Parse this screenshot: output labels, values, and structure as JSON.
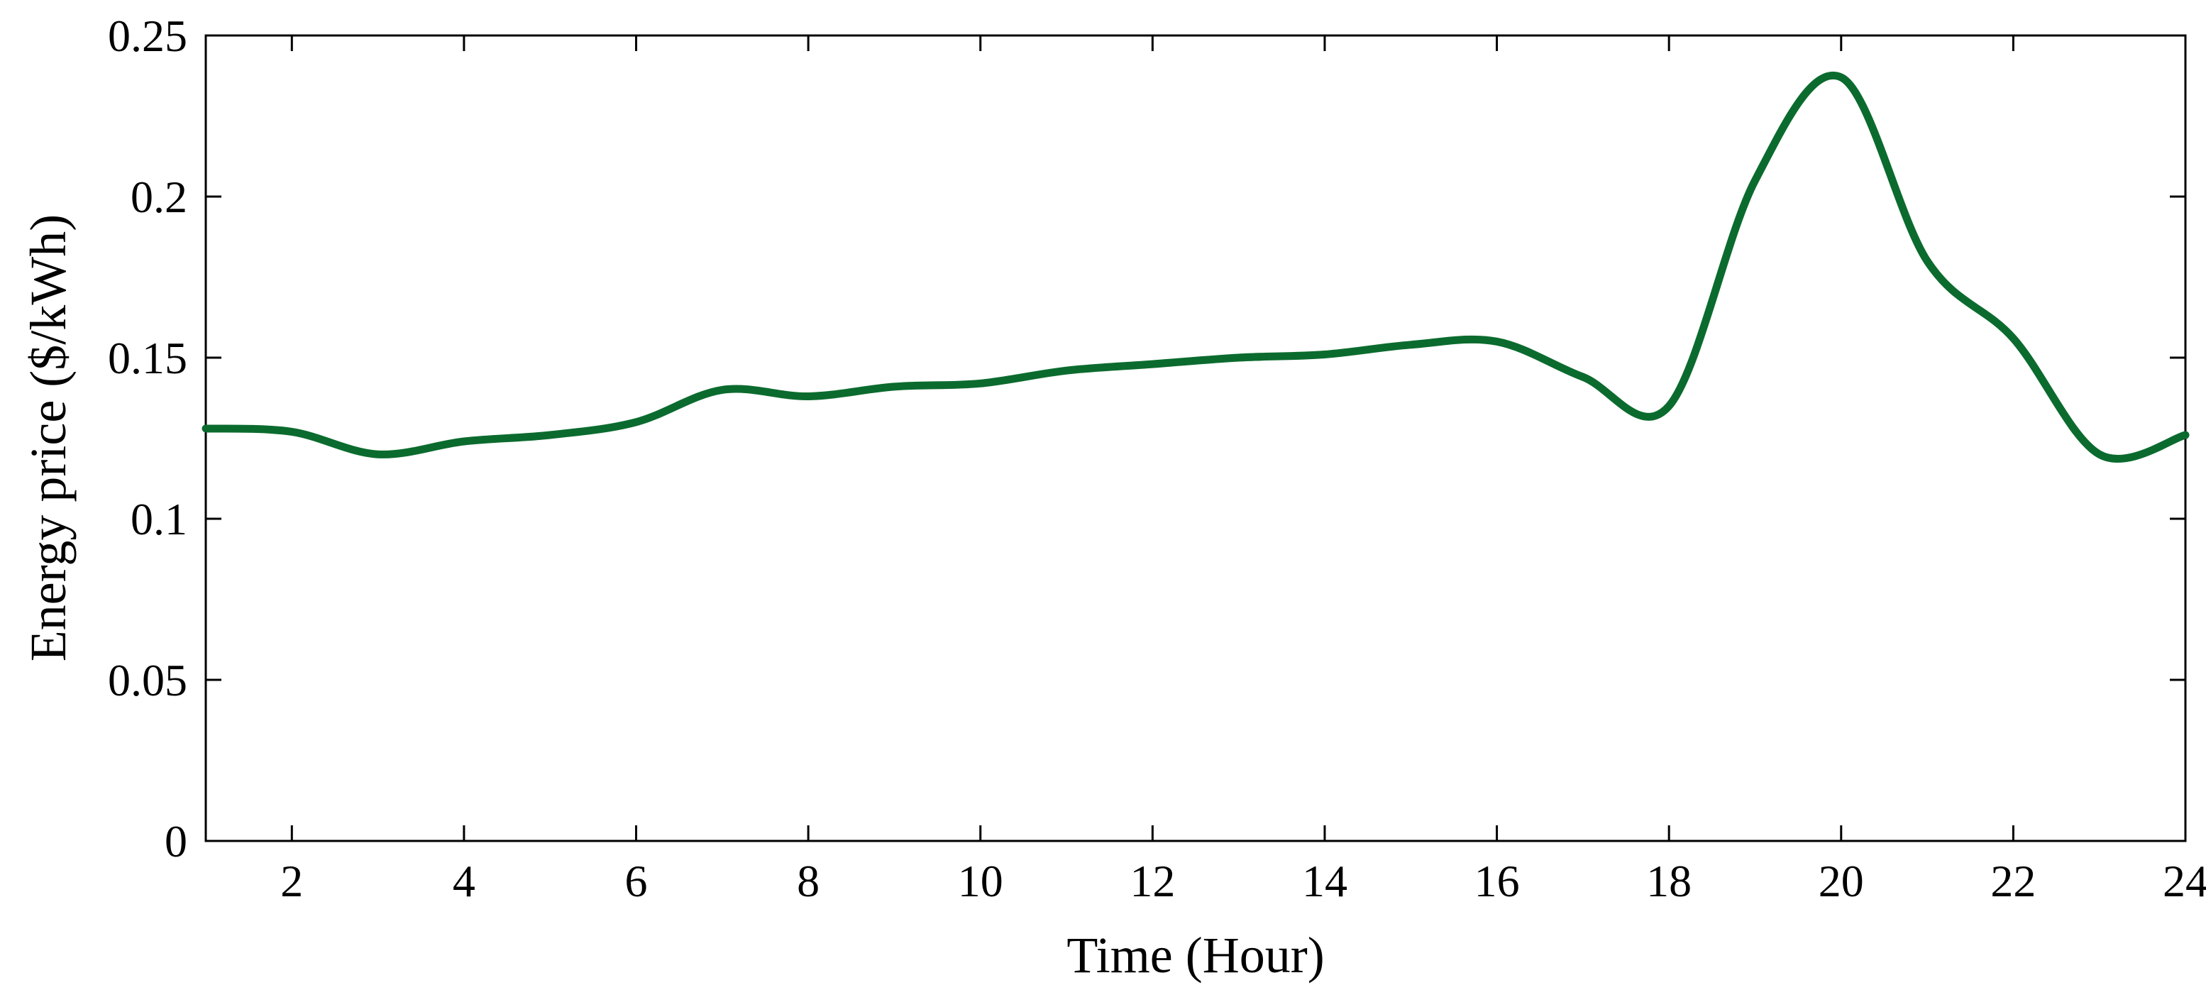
{
  "chart_data": {
    "type": "line",
    "title": "",
    "xlabel": "Time (Hour)",
    "ylabel": "Energy price ($/kWh)",
    "xlim": [
      1,
      24
    ],
    "ylim": [
      0,
      0.25
    ],
    "xticks": [
      2,
      4,
      6,
      8,
      10,
      12,
      14,
      16,
      18,
      20,
      22,
      24
    ],
    "xtick_labels": [
      "2",
      "4",
      "6",
      "8",
      "10",
      "12",
      "14",
      "16",
      "18",
      "20",
      "22",
      "24"
    ],
    "yticks": [
      0,
      0.05,
      0.1,
      0.15,
      0.2,
      0.25
    ],
    "ytick_labels": [
      "0",
      "0.05",
      "0.1",
      "0.15",
      "0.2",
      "0.25"
    ],
    "grid": false,
    "series": [
      {
        "color": "#0b6b2e",
        "x": [
          1,
          2,
          3,
          4,
          5,
          6,
          7,
          8,
          9,
          10,
          11,
          12,
          13,
          14,
          15,
          16,
          17,
          18,
          19,
          20,
          21,
          22,
          23,
          24
        ],
        "values": [
          0.128,
          0.127,
          0.12,
          0.124,
          0.126,
          0.13,
          0.14,
          0.138,
          0.141,
          0.142,
          0.146,
          0.148,
          0.15,
          0.151,
          0.154,
          0.155,
          0.144,
          0.135,
          0.205,
          0.237,
          0.18,
          0.156,
          0.12,
          0.126
        ]
      }
    ]
  }
}
